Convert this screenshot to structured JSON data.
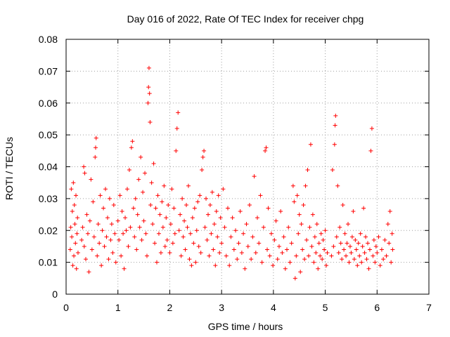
{
  "chart_data": {
    "type": "scatter",
    "title": "Day 016 of 2022, Rate Of TEC Index for receiver chpg",
    "xlabel": "GPS time / hours",
    "ylabel": "ROTI / TECUs",
    "xlim": [
      0,
      7
    ],
    "ylim": [
      0,
      0.08
    ],
    "xticks": [
      0,
      1,
      2,
      3,
      4,
      5,
      6,
      7
    ],
    "xtick_labels": [
      "0",
      "1",
      "2",
      "3",
      "4",
      "5",
      "6",
      "7"
    ],
    "yticks": [
      0,
      0.01,
      0.02,
      0.03,
      0.04,
      0.05,
      0.06,
      0.07,
      0.08
    ],
    "ytick_labels": [
      "0",
      "0.01",
      "0.02",
      "0.03",
      "0.04",
      "0.05",
      "0.06",
      "0.07",
      "0.08"
    ],
    "grid": true,
    "marker": "plus",
    "color": "#ff0000",
    "series": [
      {
        "name": "ROTI",
        "points": [
          [
            0.08,
            0.014
          ],
          [
            0.09,
            0.021
          ],
          [
            0.1,
            0.033
          ],
          [
            0.11,
            0.018
          ],
          [
            0.12,
            0.026
          ],
          [
            0.13,
            0.009
          ],
          [
            0.14,
            0.035
          ],
          [
            0.15,
            0.012
          ],
          [
            0.16,
            0.028
          ],
          [
            0.17,
            0.022
          ],
          [
            0.18,
            0.016
          ],
          [
            0.19,
            0.031
          ],
          [
            0.2,
            0.008
          ],
          [
            0.21,
            0.019
          ],
          [
            0.22,
            0.024
          ],
          [
            0.23,
            0.013
          ],
          [
            0.3,
            0.017
          ],
          [
            0.32,
            0.021
          ],
          [
            0.34,
            0.04
          ],
          [
            0.35,
            0.015
          ],
          [
            0.36,
            0.038
          ],
          [
            0.38,
            0.011
          ],
          [
            0.4,
            0.025
          ],
          [
            0.42,
            0.019
          ],
          [
            0.44,
            0.007
          ],
          [
            0.46,
            0.023
          ],
          [
            0.48,
            0.036
          ],
          [
            0.5,
            0.014
          ],
          [
            0.52,
            0.029
          ],
          [
            0.54,
            0.018
          ],
          [
            0.56,
            0.043
          ],
          [
            0.57,
            0.046
          ],
          [
            0.58,
            0.049
          ],
          [
            0.6,
            0.012
          ],
          [
            0.62,
            0.022
          ],
          [
            0.64,
            0.016
          ],
          [
            0.66,
            0.031
          ],
          [
            0.68,
            0.009
          ],
          [
            0.7,
            0.02
          ],
          [
            0.72,
            0.027
          ],
          [
            0.74,
            0.015
          ],
          [
            0.76,
            0.033
          ],
          [
            0.78,
            0.018
          ],
          [
            0.8,
            0.024
          ],
          [
            0.82,
            0.011
          ],
          [
            0.84,
            0.03
          ],
          [
            0.86,
            0.017
          ],
          [
            0.88,
            0.022
          ],
          [
            0.9,
            0.013
          ],
          [
            0.92,
            0.028
          ],
          [
            0.94,
            0.019
          ],
          [
            0.96,
            0.01
          ],
          [
            1.0,
            0.023
          ],
          [
            1.02,
            0.017
          ],
          [
            1.04,
            0.031
          ],
          [
            1.06,
            0.012
          ],
          [
            1.08,
            0.026
          ],
          [
            1.1,
            0.019
          ],
          [
            1.12,
            0.008
          ],
          [
            1.14,
            0.024
          ],
          [
            1.16,
            0.02
          ],
          [
            1.18,
            0.033
          ],
          [
            1.2,
            0.015
          ],
          [
            1.22,
            0.039
          ],
          [
            1.24,
            0.021
          ],
          [
            1.26,
            0.046
          ],
          [
            1.28,
            0.048
          ],
          [
            1.3,
            0.027
          ],
          [
            1.32,
            0.018
          ],
          [
            1.34,
            0.03
          ],
          [
            1.36,
            0.014
          ],
          [
            1.38,
            0.025
          ],
          [
            1.4,
            0.036
          ],
          [
            1.42,
            0.021
          ],
          [
            1.44,
            0.043
          ],
          [
            1.46,
            0.017
          ],
          [
            1.48,
            0.032
          ],
          [
            1.5,
            0.023
          ],
          [
            1.52,
            0.038
          ],
          [
            1.54,
            0.019
          ],
          [
            1.56,
            0.012
          ],
          [
            1.58,
            0.06
          ],
          [
            1.59,
            0.065
          ],
          [
            1.6,
            0.071
          ],
          [
            1.61,
            0.063
          ],
          [
            1.62,
            0.054
          ],
          [
            1.63,
            0.028
          ],
          [
            1.65,
            0.035
          ],
          [
            1.67,
            0.022
          ],
          [
            1.69,
            0.041
          ],
          [
            1.71,
            0.016
          ],
          [
            1.73,
            0.027
          ],
          [
            1.75,
            0.01
          ],
          [
            1.77,
            0.031
          ],
          [
            1.79,
            0.019
          ],
          [
            1.81,
            0.025
          ],
          [
            1.83,
            0.013
          ],
          [
            1.85,
            0.029
          ],
          [
            1.87,
            0.021
          ],
          [
            1.89,
            0.034
          ],
          [
            1.91,
            0.015
          ],
          [
            1.93,
            0.024
          ],
          [
            1.95,
            0.017
          ],
          [
            1.97,
            0.028
          ],
          [
            2.0,
            0.013
          ],
          [
            2.02,
            0.022
          ],
          [
            2.04,
            0.033
          ],
          [
            2.06,
            0.016
          ],
          [
            2.08,
            0.027
          ],
          [
            2.1,
            0.019
          ],
          [
            2.12,
            0.045
          ],
          [
            2.14,
            0.052
          ],
          [
            2.16,
            0.057
          ],
          [
            2.18,
            0.02
          ],
          [
            2.2,
            0.025
          ],
          [
            2.22,
            0.012
          ],
          [
            2.24,
            0.03
          ],
          [
            2.26,
            0.018
          ],
          [
            2.28,
            0.023
          ],
          [
            2.3,
            0.014
          ],
          [
            2.32,
            0.028
          ],
          [
            2.34,
            0.021
          ],
          [
            2.36,
            0.034
          ],
          [
            2.38,
            0.011
          ],
          [
            2.4,
            0.019
          ],
          [
            2.42,
            0.009
          ],
          [
            2.44,
            0.024
          ],
          [
            2.46,
            0.016
          ],
          [
            2.48,
            0.027
          ],
          [
            2.5,
            0.01
          ],
          [
            2.52,
            0.02
          ],
          [
            2.54,
            0.029
          ],
          [
            2.56,
            0.015
          ],
          [
            2.58,
            0.031
          ],
          [
            2.6,
            0.013
          ],
          [
            2.62,
            0.039
          ],
          [
            2.64,
            0.043
          ],
          [
            2.66,
            0.045
          ],
          [
            2.68,
            0.021
          ],
          [
            2.7,
            0.03
          ],
          [
            2.72,
            0.017
          ],
          [
            2.74,
            0.025
          ],
          [
            2.76,
            0.012
          ],
          [
            2.78,
            0.028
          ],
          [
            2.8,
            0.019
          ],
          [
            2.82,
            0.032
          ],
          [
            2.84,
            0.014
          ],
          [
            2.86,
            0.022
          ],
          [
            2.88,
            0.009
          ],
          [
            2.9,
            0.026
          ],
          [
            2.92,
            0.018
          ],
          [
            2.94,
            0.031
          ],
          [
            2.96,
            0.013
          ],
          [
            2.98,
            0.024
          ],
          [
            3.0,
            0.016
          ],
          [
            3.03,
            0.033
          ],
          [
            3.06,
            0.021
          ],
          [
            3.09,
            0.012
          ],
          [
            3.12,
            0.027
          ],
          [
            3.15,
            0.009
          ],
          [
            3.18,
            0.018
          ],
          [
            3.21,
            0.024
          ],
          [
            3.24,
            0.014
          ],
          [
            3.27,
            0.02
          ],
          [
            3.3,
            0.011
          ],
          [
            3.33,
            0.016
          ],
          [
            3.36,
            0.026
          ],
          [
            3.39,
            0.013
          ],
          [
            3.42,
            0.019
          ],
          [
            3.45,
            0.008
          ],
          [
            3.48,
            0.022
          ],
          [
            3.51,
            0.015
          ],
          [
            3.54,
            0.028
          ],
          [
            3.57,
            0.011
          ],
          [
            3.6,
            0.018
          ],
          [
            3.63,
            0.037
          ],
          [
            3.66,
            0.013
          ],
          [
            3.69,
            0.024
          ],
          [
            3.72,
            0.016
          ],
          [
            3.75,
            0.031
          ],
          [
            3.78,
            0.01
          ],
          [
            3.81,
            0.021
          ],
          [
            3.84,
            0.045
          ],
          [
            3.86,
            0.046
          ],
          [
            3.88,
            0.014
          ],
          [
            3.9,
            0.027
          ],
          [
            3.93,
            0.012
          ],
          [
            3.96,
            0.019
          ],
          [
            3.99,
            0.009
          ],
          [
            4.02,
            0.017
          ],
          [
            4.05,
            0.023
          ],
          [
            4.08,
            0.011
          ],
          [
            4.11,
            0.015
          ],
          [
            4.14,
            0.026
          ],
          [
            4.17,
            0.013
          ],
          [
            4.2,
            0.018
          ],
          [
            4.23,
            0.008
          ],
          [
            4.26,
            0.014
          ],
          [
            4.29,
            0.021
          ],
          [
            4.32,
            0.01
          ],
          [
            4.35,
            0.016
          ],
          [
            4.38,
            0.034
          ],
          [
            4.4,
            0.029
          ],
          [
            4.42,
            0.005
          ],
          [
            4.44,
            0.012
          ],
          [
            4.46,
            0.031
          ],
          [
            4.48,
            0.019
          ],
          [
            4.5,
            0.025
          ],
          [
            4.52,
            0.007
          ],
          [
            4.54,
            0.022
          ],
          [
            4.56,
            0.014
          ],
          [
            4.58,
            0.028
          ],
          [
            4.6,
            0.011
          ],
          [
            4.62,
            0.034
          ],
          [
            4.64,
            0.017
          ],
          [
            4.66,
            0.039
          ],
          [
            4.68,
            0.012
          ],
          [
            4.7,
            0.021
          ],
          [
            4.72,
            0.047
          ],
          [
            4.74,
            0.015
          ],
          [
            4.76,
            0.025
          ],
          [
            4.78,
            0.01
          ],
          [
            4.8,
            0.018
          ],
          [
            4.82,
            0.013
          ],
          [
            4.84,
            0.022
          ],
          [
            4.86,
            0.008
          ],
          [
            4.88,
            0.016
          ],
          [
            4.9,
            0.012
          ],
          [
            4.92,
            0.019
          ],
          [
            4.94,
            0.011
          ],
          [
            4.96,
            0.017
          ],
          [
            4.98,
            0.014
          ],
          [
            5.0,
            0.02
          ],
          [
            5.02,
            0.009
          ],
          [
            5.04,
            0.013
          ],
          [
            5.12,
            0.012
          ],
          [
            5.14,
            0.039
          ],
          [
            5.16,
            0.015
          ],
          [
            5.18,
            0.047
          ],
          [
            5.19,
            0.053
          ],
          [
            5.2,
            0.056
          ],
          [
            5.22,
            0.018
          ],
          [
            5.24,
            0.034
          ],
          [
            5.26,
            0.013
          ],
          [
            5.28,
            0.021
          ],
          [
            5.3,
            0.016
          ],
          [
            5.32,
            0.011
          ],
          [
            5.34,
            0.028
          ],
          [
            5.36,
            0.014
          ],
          [
            5.38,
            0.019
          ],
          [
            5.4,
            0.012
          ],
          [
            5.42,
            0.016
          ],
          [
            5.44,
            0.022
          ],
          [
            5.46,
            0.01
          ],
          [
            5.48,
            0.015
          ],
          [
            5.5,
            0.013
          ],
          [
            5.52,
            0.018
          ],
          [
            5.54,
            0.026
          ],
          [
            5.56,
            0.011
          ],
          [
            5.58,
            0.017
          ],
          [
            5.6,
            0.014
          ],
          [
            5.62,
            0.009
          ],
          [
            5.64,
            0.016
          ],
          [
            5.66,
            0.012
          ],
          [
            5.68,
            0.019
          ],
          [
            5.7,
            0.01
          ],
          [
            5.72,
            0.015
          ],
          [
            5.74,
            0.027
          ],
          [
            5.76,
            0.013
          ],
          [
            5.78,
            0.018
          ],
          [
            5.8,
            0.011
          ],
          [
            5.82,
            0.016
          ],
          [
            5.84,
            0.008
          ],
          [
            5.86,
            0.014
          ],
          [
            5.88,
            0.045
          ],
          [
            5.9,
            0.052
          ],
          [
            5.92,
            0.012
          ],
          [
            5.94,
            0.017
          ],
          [
            5.96,
            0.01
          ],
          [
            5.98,
            0.015
          ],
          [
            6.0,
            0.013
          ],
          [
            6.03,
            0.018
          ],
          [
            6.06,
            0.009
          ],
          [
            6.09,
            0.014
          ],
          [
            6.12,
            0.011
          ],
          [
            6.15,
            0.017
          ],
          [
            6.18,
            0.012
          ],
          [
            6.21,
            0.022
          ],
          [
            6.23,
            0.016
          ],
          [
            6.25,
            0.026
          ],
          [
            6.27,
            0.01
          ],
          [
            6.29,
            0.019
          ],
          [
            6.3,
            0.014
          ]
        ]
      }
    ]
  }
}
